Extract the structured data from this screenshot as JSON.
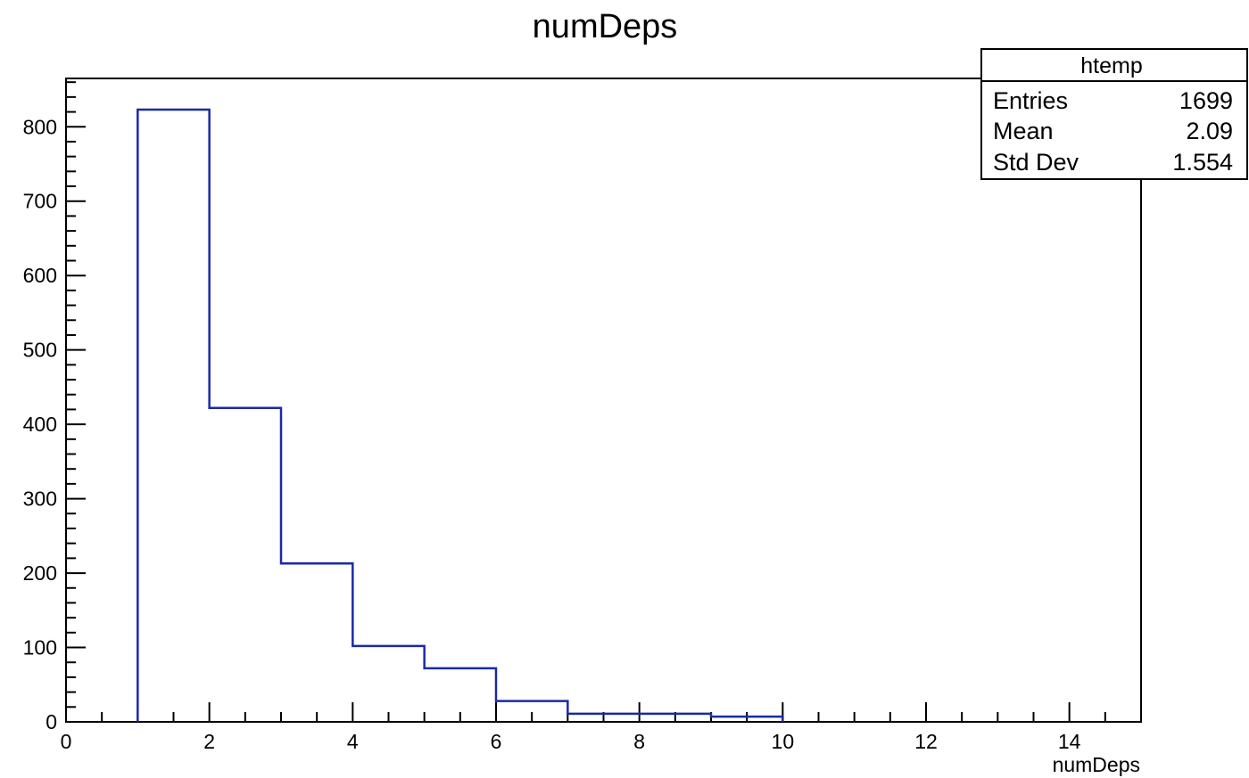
{
  "chart_data": {
    "type": "bar",
    "title": "numDeps",
    "xlabel": "numDeps",
    "ylabel": "",
    "xlim": [
      0,
      15
    ],
    "ylim": [
      0,
      865
    ],
    "bins": [
      {
        "x_low": 1,
        "x_high": 2,
        "value": 823
      },
      {
        "x_low": 2,
        "x_high": 3,
        "value": 422
      },
      {
        "x_low": 3,
        "x_high": 4,
        "value": 213
      },
      {
        "x_low": 4,
        "x_high": 5,
        "value": 102
      },
      {
        "x_low": 5,
        "x_high": 6,
        "value": 72
      },
      {
        "x_low": 6,
        "x_high": 7,
        "value": 28
      },
      {
        "x_low": 7,
        "x_high": 8,
        "value": 11
      },
      {
        "x_low": 8,
        "x_high": 9,
        "value": 11
      },
      {
        "x_low": 9,
        "x_high": 10,
        "value": 7
      }
    ],
    "x_ticks": [
      "0",
      "2",
      "4",
      "6",
      "8",
      "10",
      "12",
      "14"
    ],
    "y_ticks": [
      "0",
      "100",
      "200",
      "300",
      "400",
      "500",
      "600",
      "700",
      "800"
    ],
    "line_color": "#1a2aa8",
    "grid": false,
    "legend": "none",
    "stats_box": {
      "placement": "top-right",
      "title": "htemp",
      "rows": [
        {
          "label": "Entries",
          "value": "1699"
        },
        {
          "label": "Mean",
          "value": "2.09"
        },
        {
          "label": "Std Dev",
          "value": "1.554"
        }
      ]
    }
  }
}
